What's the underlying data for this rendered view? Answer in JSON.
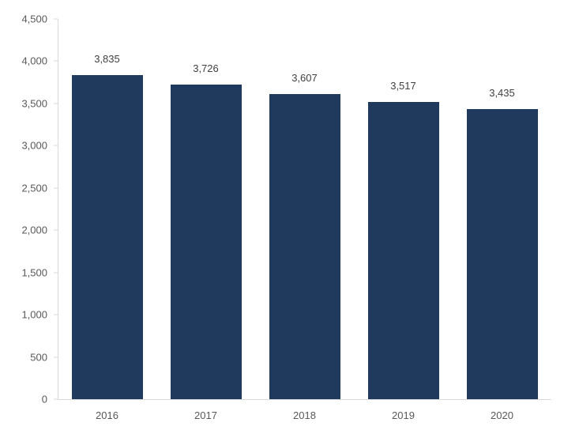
{
  "chart_data": {
    "type": "bar",
    "title": "",
    "xlabel": "",
    "ylabel": "",
    "categories": [
      "2016",
      "2017",
      "2018",
      "2019",
      "2020"
    ],
    "values": [
      3835,
      3726,
      3607,
      3517,
      3435
    ],
    "data_labels": [
      "3,835",
      "3,726",
      "3,607",
      "3,517",
      "3,435"
    ],
    "ylim": [
      0,
      4500
    ],
    "ytick_step": 500,
    "yticks": [
      {
        "value": 4500,
        "label": "4,500"
      },
      {
        "value": 4000,
        "label": "4,000"
      },
      {
        "value": 3500,
        "label": "3,500"
      },
      {
        "value": 3000,
        "label": "3,000"
      },
      {
        "value": 2500,
        "label": "2,500"
      },
      {
        "value": 2000,
        "label": "2,000"
      },
      {
        "value": 1500,
        "label": "1,500"
      },
      {
        "value": 1000,
        "label": "1,000"
      },
      {
        "value": 500,
        "label": "500"
      },
      {
        "value": 0,
        "label": "0"
      }
    ],
    "grid": false,
    "legend_position": "none",
    "colors": {
      "bar": "#203a5e",
      "axis_line": "#d9d9d9",
      "axis_text": "#595959",
      "data_label_text": "#404040",
      "background": "#ffffff"
    }
  }
}
